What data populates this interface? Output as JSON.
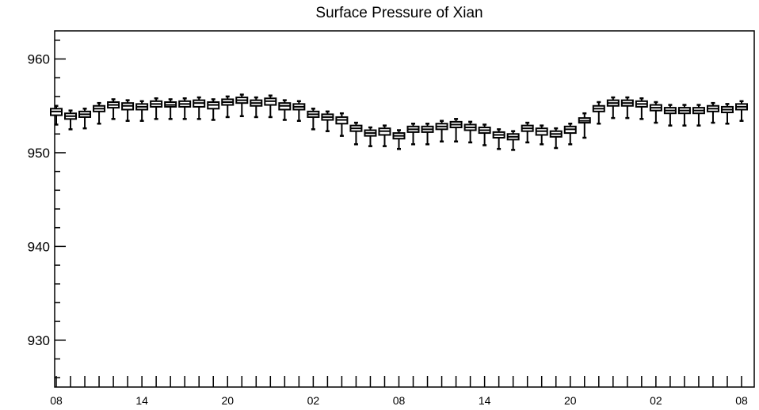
{
  "chart_data": {
    "type": "boxplot",
    "title": "Surface Pressure of Xian",
    "xlabel": "",
    "ylabel": "",
    "ylim": [
      925,
      963
    ],
    "yticks": [
      930,
      940,
      950,
      960
    ],
    "yticklabels": [
      "930",
      "940",
      "950",
      "960"
    ],
    "xticklabels": [
      "08",
      "14",
      "20",
      "02",
      "08",
      "14",
      "20",
      "02",
      "08"
    ],
    "xticklabel_positions_hours": [
      0,
      6,
      12,
      18,
      24,
      30,
      36,
      42,
      48
    ],
    "grid": false,
    "series": [
      {
        "hours": [
          0,
          1,
          2,
          3,
          4,
          5,
          6,
          7,
          8,
          9,
          10,
          11,
          12,
          13,
          14,
          15,
          16,
          17,
          18,
          19,
          20,
          21,
          22,
          23,
          24,
          25,
          26,
          27,
          28,
          29,
          30,
          31,
          32,
          33,
          34,
          35,
          36,
          37,
          38,
          39,
          40,
          41,
          42,
          43,
          44,
          45,
          46,
          47,
          48
        ],
        "median": [
          954.4,
          953.9,
          954.1,
          954.7,
          955.1,
          955.0,
          954.9,
          955.2,
          955.1,
          955.2,
          955.3,
          955.1,
          955.4,
          955.6,
          955.3,
          955.5,
          955.0,
          954.9,
          954.1,
          953.8,
          953.5,
          952.6,
          952.1,
          952.3,
          951.8,
          952.5,
          952.5,
          952.8,
          953.0,
          952.7,
          952.4,
          951.9,
          951.7,
          952.6,
          952.3,
          952.0,
          952.5,
          953.4,
          954.7,
          955.3,
          955.3,
          955.2,
          954.8,
          954.5,
          954.5,
          954.5,
          954.7,
          954.6,
          954.9
        ],
        "q1": [
          954.0,
          953.6,
          953.8,
          954.4,
          954.8,
          954.6,
          954.6,
          954.9,
          954.9,
          954.9,
          954.9,
          954.7,
          955.1,
          955.3,
          955.0,
          955.1,
          954.6,
          954.6,
          953.8,
          953.5,
          953.1,
          952.3,
          951.8,
          951.9,
          951.5,
          952.2,
          952.2,
          952.5,
          952.7,
          952.4,
          952.1,
          951.6,
          951.4,
          952.3,
          951.9,
          951.7,
          952.1,
          953.2,
          954.4,
          955.0,
          955.0,
          954.9,
          954.5,
          954.2,
          954.2,
          954.2,
          954.4,
          954.3,
          954.6
        ],
        "q3": [
          954.7,
          954.2,
          954.4,
          955.0,
          955.4,
          955.3,
          955.2,
          955.5,
          955.4,
          955.5,
          955.6,
          955.4,
          955.7,
          955.9,
          955.6,
          955.8,
          955.3,
          955.2,
          954.4,
          954.1,
          953.8,
          952.9,
          952.4,
          952.6,
          952.1,
          952.8,
          952.8,
          953.1,
          953.3,
          953.0,
          952.7,
          952.2,
          952.0,
          952.9,
          952.6,
          952.3,
          952.8,
          953.7,
          955.0,
          955.6,
          955.6,
          955.5,
          955.1,
          954.8,
          954.8,
          954.8,
          955.0,
          954.9,
          955.2
        ],
        "low": [
          953.0,
          952.5,
          952.6,
          953.1,
          953.6,
          953.4,
          953.4,
          953.6,
          953.6,
          953.6,
          953.6,
          953.5,
          953.8,
          953.9,
          953.8,
          953.8,
          953.5,
          953.4,
          952.5,
          952.3,
          951.8,
          950.9,
          950.7,
          950.7,
          950.4,
          950.9,
          950.9,
          951.2,
          951.2,
          951.1,
          950.8,
          950.4,
          950.3,
          951.1,
          950.9,
          950.5,
          950.9,
          951.6,
          953.1,
          953.7,
          953.7,
          953.6,
          953.2,
          952.9,
          952.9,
          952.9,
          953.2,
          953.1,
          953.4
        ],
        "high": [
          955.0,
          954.5,
          954.7,
          955.3,
          955.7,
          955.6,
          955.5,
          955.8,
          955.7,
          955.8,
          955.9,
          955.7,
          956.0,
          956.2,
          955.9,
          956.1,
          955.6,
          955.5,
          954.7,
          954.4,
          954.2,
          953.2,
          952.7,
          952.9,
          952.4,
          953.1,
          953.1,
          953.4,
          953.6,
          953.3,
          953.0,
          952.5,
          952.3,
          953.2,
          952.9,
          952.6,
          953.1,
          954.2,
          955.4,
          955.9,
          955.9,
          955.8,
          955.4,
          955.1,
          955.1,
          955.1,
          955.3,
          955.2,
          955.5
        ]
      }
    ]
  }
}
